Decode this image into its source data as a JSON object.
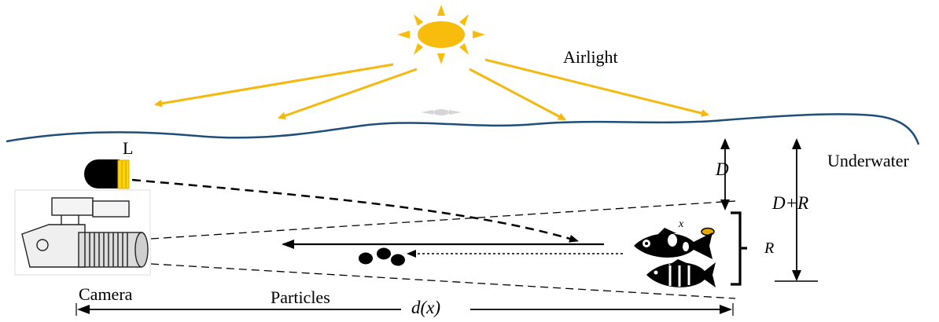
{
  "labels": {
    "airlight": "Airlight",
    "underwater": "Underwater",
    "lamp": "L",
    "depth": "D",
    "depth_plus_range": "D+R",
    "range": "R",
    "camera": "Camera",
    "particles": "Particles",
    "distance": "d(x)",
    "point": "x"
  },
  "icons": [
    "sun-icon",
    "lamp-icon",
    "camera-icon",
    "fish-icon",
    "striped-fish-icon",
    "particle-icon",
    "target-point-icon"
  ],
  "colors": {
    "sun": "#F8BC0C",
    "rays": "#F5B80E",
    "water_surface": "#1F4E79",
    "ink": "#000000",
    "lamp_lens": "#FFD500"
  }
}
